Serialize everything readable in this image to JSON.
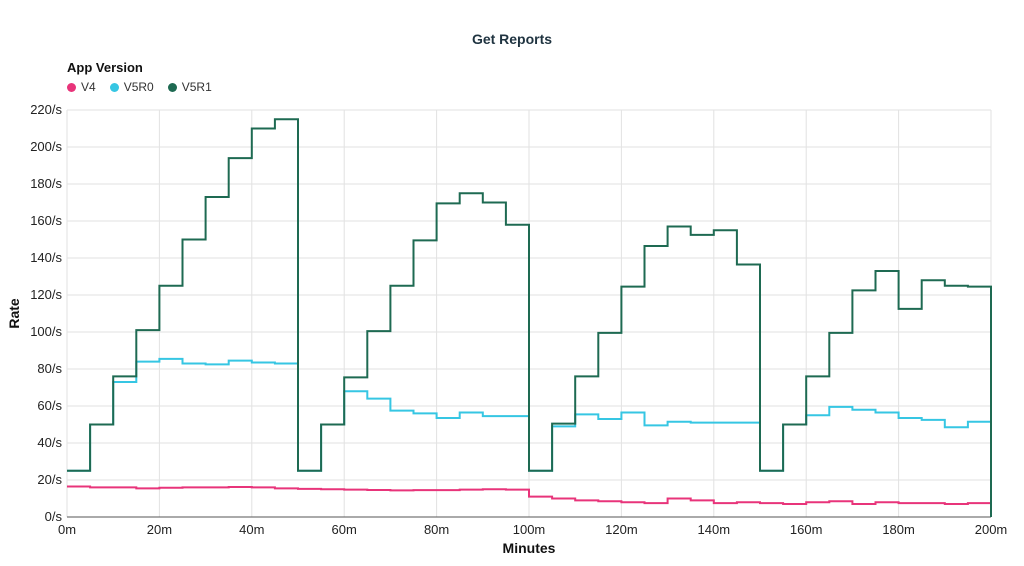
{
  "chart_data": {
    "type": "line",
    "title": "Get Reports",
    "xlabel": "Minutes",
    "ylabel": "Rate",
    "legend_title": "App Version",
    "legend_placement": "top-left",
    "grid": true,
    "xlim": [
      0,
      200
    ],
    "ylim": [
      0,
      220
    ],
    "x_ticks": [
      0,
      20,
      40,
      60,
      80,
      100,
      120,
      140,
      160,
      180,
      200
    ],
    "x_tick_labels": [
      "0m",
      "20m",
      "40m",
      "60m",
      "80m",
      "100m",
      "120m",
      "140m",
      "160m",
      "180m",
      "200m"
    ],
    "y_ticks": [
      0,
      20,
      40,
      60,
      80,
      100,
      120,
      140,
      160,
      180,
      200,
      220
    ],
    "y_tick_labels": [
      "0/s",
      "20/s",
      "40/s",
      "60/s",
      "80/s",
      "100/s",
      "120/s",
      "140/s",
      "160/s",
      "180/s",
      "200/s",
      "220/s"
    ],
    "x": [
      0,
      5,
      10,
      15,
      20,
      25,
      30,
      35,
      40,
      45,
      50,
      55,
      60,
      65,
      70,
      75,
      80,
      85,
      90,
      95,
      100,
      105,
      110,
      115,
      120,
      125,
      130,
      135,
      140,
      145,
      150,
      155,
      160,
      165,
      170,
      175,
      180,
      185,
      190,
      195
    ],
    "series": [
      {
        "name": "V4",
        "color": "#e8347a",
        "values": [
          16.5,
          16,
          16,
          15.5,
          15.8,
          16,
          16,
          16.2,
          16,
          15.5,
          15.2,
          15,
          14.8,
          14.6,
          14.4,
          14.5,
          14.5,
          14.8,
          15,
          14.8,
          11,
          10,
          9,
          8.5,
          8,
          7.5,
          10,
          9,
          7.5,
          8,
          7.5,
          7,
          8,
          8.5,
          7,
          8,
          7.5,
          7.5,
          7,
          7.5
        ]
      },
      {
        "name": "V5R0",
        "color": "#36c6e3",
        "values": [
          25,
          50,
          73,
          84,
          85.5,
          83,
          82.5,
          84.5,
          83.5,
          83,
          25,
          50,
          68,
          64,
          57.5,
          56,
          53.5,
          56.5,
          54.5,
          54.5,
          25,
          49,
          55.5,
          53,
          56.5,
          49.5,
          51.5,
          51,
          51,
          51,
          25,
          50,
          55,
          59.5,
          58,
          56.5,
          53.5,
          52.5,
          48.5,
          51.5
        ]
      },
      {
        "name": "V5R1",
        "color": "#1e6a52",
        "values": [
          25,
          50,
          76,
          101,
          125,
          150,
          173,
          194,
          210,
          215,
          25,
          50,
          75.5,
          100.5,
          125,
          149.5,
          169.5,
          175,
          170,
          158,
          25,
          50.5,
          76,
          99.5,
          124.5,
          146.5,
          157,
          152.5,
          155,
          136.5,
          25,
          50,
          76,
          99.5,
          122.5,
          133,
          112.5,
          128,
          125,
          124.5
        ]
      }
    ]
  }
}
